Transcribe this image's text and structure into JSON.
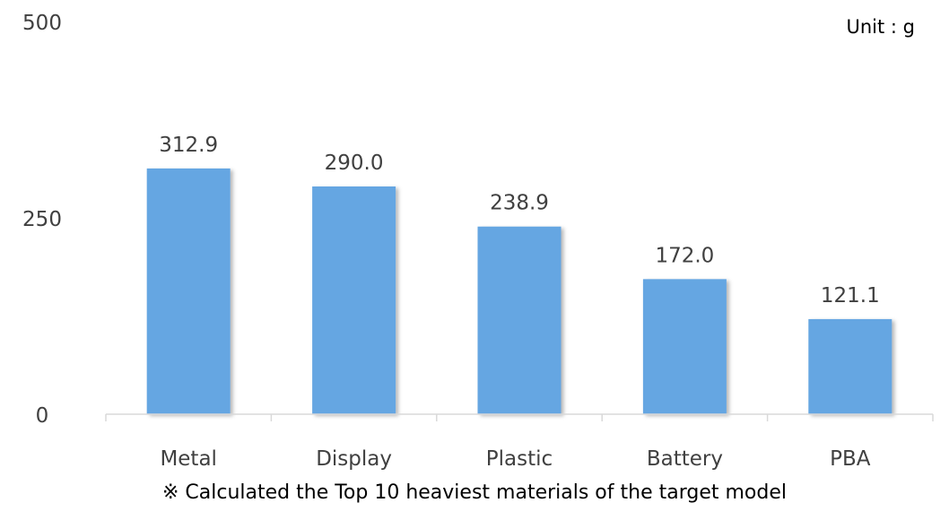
{
  "chart_data": {
    "type": "bar",
    "title": "",
    "xlabel": "",
    "ylabel": "",
    "unit_label": "Unit : g",
    "footnote": "※ Calculated the Top 10 heaviest materials of the target model",
    "categories": [
      "Metal",
      "Display",
      "Plastic",
      "Battery",
      "PBA"
    ],
    "values": [
      312.9,
      290.0,
      238.9,
      172.0,
      121.1
    ],
    "value_labels": [
      "312.9",
      "290.0",
      "238.9",
      "172.0",
      "121.1"
    ],
    "yticks": [
      0,
      250,
      500
    ],
    "ytick_labels": [
      "0",
      "250",
      "500"
    ],
    "ylim": [
      0,
      500
    ],
    "grid": false,
    "legend": "none",
    "bar_color": "#65A6E2",
    "axis_color": "#D9D9D9"
  }
}
